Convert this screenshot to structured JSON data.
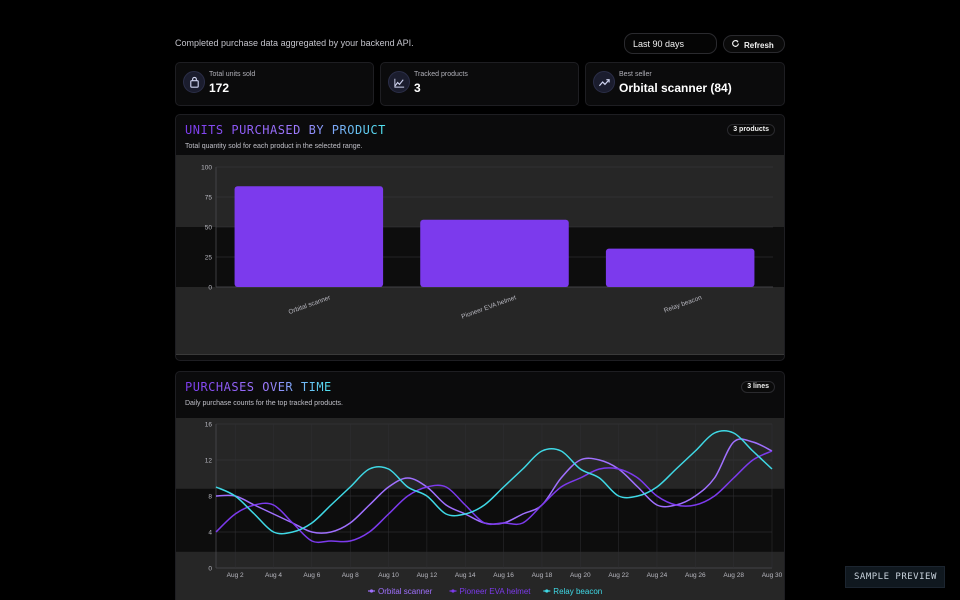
{
  "header": {
    "subtitle": "Completed purchase data aggregated by your backend API.",
    "range_value": "Last 90 days",
    "refresh_label": "Refresh"
  },
  "stats": [
    {
      "label": "Total units sold",
      "value": "172",
      "icon": "shopping-bag-icon"
    },
    {
      "label": "Tracked products",
      "value": "3",
      "icon": "chart-line-icon"
    },
    {
      "label": "Best seller",
      "value": "Orbital scanner (84)",
      "icon": "trending-up-icon"
    }
  ],
  "bar_card": {
    "title": "UNITS PURCHASED BY PRODUCT",
    "description": "Total quantity sold for each product in the selected range.",
    "badge": "3 products"
  },
  "line_card": {
    "title": "PURCHASES OVER TIME",
    "description": "Daily purchase counts for the top tracked products.",
    "badge": "3 lines"
  },
  "footer": {
    "preview_label": "SAMPLE PREVIEW"
  },
  "colors": {
    "purple": "#7c3aed",
    "violet": "#a070ff",
    "cyan": "#3fd9e6",
    "background": "#000000"
  },
  "chart_data": [
    {
      "type": "bar",
      "categories": [
        "Orbital scanner",
        "Pioneer EVA helmet",
        "Relay beacon"
      ],
      "values": [
        84,
        56,
        32
      ],
      "yticks": [
        0,
        25,
        50,
        75,
        100
      ],
      "ylim": [
        0,
        100
      ],
      "grid": true
    },
    {
      "type": "line",
      "x": [
        "Aug 1",
        "Aug 2",
        "Aug 3",
        "Aug 4",
        "Aug 5",
        "Aug 6",
        "Aug 7",
        "Aug 8",
        "Aug 9",
        "Aug 10",
        "Aug 11",
        "Aug 12",
        "Aug 13",
        "Aug 14",
        "Aug 15",
        "Aug 16",
        "Aug 17",
        "Aug 18",
        "Aug 19",
        "Aug 20",
        "Aug 21",
        "Aug 22",
        "Aug 23",
        "Aug 24",
        "Aug 25",
        "Aug 26",
        "Aug 27",
        "Aug 28",
        "Aug 29",
        "Aug 30"
      ],
      "xticks": [
        "Aug 2",
        "Aug 4",
        "Aug 6",
        "Aug 8",
        "Aug 10",
        "Aug 12",
        "Aug 14",
        "Aug 16",
        "Aug 18",
        "Aug 20",
        "Aug 22",
        "Aug 24",
        "Aug 26",
        "Aug 28",
        "Aug 30"
      ],
      "yticks": [
        0,
        4,
        8,
        12,
        16
      ],
      "ylim": [
        0,
        16
      ],
      "legend": "bottom",
      "series": [
        {
          "name": "Orbital scanner",
          "color": "#a070ff",
          "values": [
            8,
            8,
            7,
            6,
            5,
            4,
            4,
            5,
            7,
            9,
            10,
            9,
            7,
            6,
            5,
            5,
            6,
            7,
            10,
            12,
            12,
            11,
            9,
            7,
            7,
            8,
            10,
            14,
            14,
            13
          ]
        },
        {
          "name": "Pioneer EVA helmet",
          "color": "#7c3aed",
          "values": [
            4,
            6,
            7,
            7,
            5,
            3,
            3,
            3,
            4,
            6,
            8,
            9,
            9,
            7,
            5,
            5,
            5,
            7,
            9,
            10,
            11,
            11,
            10,
            8,
            7,
            7,
            8,
            10,
            12,
            13
          ]
        },
        {
          "name": "Relay beacon",
          "color": "#3fd9e6",
          "values": [
            9,
            8,
            6,
            4,
            4,
            5,
            7,
            9,
            11,
            11,
            9,
            8,
            6,
            6,
            7,
            9,
            11,
            13,
            13,
            11,
            10,
            8,
            8,
            9,
            11,
            13,
            15,
            15,
            13,
            11
          ]
        }
      ]
    }
  ]
}
